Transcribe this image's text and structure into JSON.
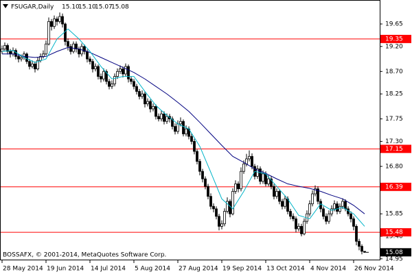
{
  "chart_data": {
    "type": "candlestick",
    "title": "FSUGAR,Daily",
    "ohlc_labels": [
      "15.10",
      "15.10",
      "15.07",
      "15.08"
    ],
    "watermark": "BOSSAFX, © 2001-2014, MetaQuotes Software Corp.",
    "categories": [
      "28 May 2014",
      null,
      null,
      null,
      null,
      null,
      null,
      null,
      null,
      null,
      null,
      null,
      null,
      null,
      null,
      null,
      "19 Jun 2014",
      null,
      null,
      null,
      null,
      null,
      null,
      null,
      null,
      null,
      null,
      null,
      null,
      null,
      null,
      null,
      "14 Jul 2014",
      null,
      null,
      null,
      null,
      null,
      null,
      null,
      null,
      null,
      null,
      null,
      null,
      null,
      null,
      null,
      "5 Aug 2014",
      null,
      null,
      null,
      null,
      null,
      null,
      null,
      null,
      null,
      null,
      null,
      null,
      null,
      null,
      null,
      "27 Aug 2014",
      null,
      null,
      null,
      null,
      null,
      null,
      null,
      null,
      null,
      null,
      null,
      null,
      null,
      null,
      null,
      "19 Sep 2014",
      null,
      null,
      null,
      null,
      null,
      null,
      null,
      null,
      null,
      null,
      null,
      null,
      null,
      null,
      null,
      "13 Oct 2014",
      null,
      null,
      null,
      null,
      null,
      null,
      null,
      null,
      null,
      null,
      null,
      null,
      null,
      null,
      null,
      "4 Nov 2014",
      null,
      null,
      null,
      null,
      null,
      null,
      null,
      null,
      null,
      null,
      null,
      null,
      null,
      null,
      null,
      "26 Nov 2014",
      null,
      null,
      null,
      null
    ],
    "open": [
      19.1,
      19.15,
      19.22,
      19.1,
      19.05,
      19.12,
      19.0,
      18.95,
      18.98,
      19.05,
      18.9,
      18.8,
      18.85,
      18.75,
      18.92,
      19.0,
      19.05,
      19.25,
      19.7,
      19.6,
      19.75,
      19.7,
      19.8,
      19.65,
      19.3,
      19.2,
      19.1,
      19.25,
      19.15,
      19.05,
      19.2,
      19.1,
      18.95,
      18.9,
      18.75,
      18.8,
      18.6,
      18.55,
      18.7,
      18.5,
      18.4,
      18.45,
      18.6,
      18.7,
      18.75,
      18.65,
      18.8,
      18.55,
      18.5,
      18.4,
      18.3,
      18.2,
      18.25,
      18.05,
      18.1,
      17.95,
      18.0,
      17.8,
      17.75,
      17.85,
      17.7,
      17.8,
      17.75,
      17.6,
      17.5,
      17.65,
      17.7,
      17.45,
      17.55,
      17.4,
      17.3,
      17.1,
      16.9,
      16.7,
      16.55,
      16.4,
      16.2,
      16.0,
      15.95,
      15.8,
      15.6,
      15.65,
      15.9,
      16.1,
      15.85,
      16.3,
      16.45,
      16.35,
      16.7,
      16.85,
      16.95,
      17.0,
      16.8,
      16.6,
      16.75,
      16.5,
      16.65,
      16.45,
      16.55,
      16.4,
      16.2,
      16.3,
      16.1,
      16.0,
      16.15,
      15.9,
      15.8,
      15.75,
      15.55,
      15.6,
      15.45,
      15.7,
      15.85,
      16.05,
      16.25,
      16.35,
      16.1,
      15.95,
      15.8,
      15.7,
      15.85,
      15.95,
      16.05,
      15.9,
      16.0,
      16.1,
      15.95,
      15.85,
      15.75,
      15.6,
      15.3,
      15.2,
      15.1
    ],
    "high": [
      19.22,
      19.28,
      19.26,
      19.15,
      19.18,
      19.16,
      19.05,
      19.04,
      19.1,
      19.08,
      18.95,
      18.92,
      18.9,
      18.98,
      19.06,
      19.12,
      19.32,
      19.78,
      19.75,
      19.82,
      19.8,
      19.88,
      19.86,
      19.68,
      19.36,
      19.25,
      19.3,
      19.3,
      19.2,
      19.26,
      19.24,
      19.14,
      19.0,
      18.95,
      18.86,
      18.84,
      18.66,
      18.76,
      18.74,
      18.55,
      18.52,
      18.66,
      18.76,
      18.82,
      18.8,
      18.86,
      18.84,
      18.6,
      18.55,
      18.45,
      18.35,
      18.32,
      18.3,
      18.16,
      18.14,
      18.06,
      18.04,
      17.86,
      17.92,
      17.9,
      17.86,
      17.85,
      17.8,
      17.66,
      17.72,
      17.78,
      17.74,
      17.62,
      17.6,
      17.46,
      17.35,
      17.14,
      16.95,
      16.75,
      16.6,
      16.45,
      16.26,
      16.06,
      16.0,
      15.85,
      15.72,
      15.96,
      16.18,
      16.14,
      16.36,
      16.52,
      16.5,
      16.78,
      16.92,
      17.05,
      17.12,
      17.06,
      16.85,
      16.82,
      16.8,
      16.72,
      16.7,
      16.62,
      16.6,
      16.45,
      16.36,
      16.34,
      16.15,
      16.22,
      16.2,
      15.95,
      15.86,
      15.8,
      15.66,
      15.65,
      15.76,
      15.92,
      16.12,
      16.32,
      16.42,
      16.4,
      16.15,
      16.0,
      15.86,
      15.92,
      16.02,
      16.12,
      16.1,
      16.06,
      16.16,
      16.14,
      16.0,
      15.9,
      15.8,
      15.64,
      15.35,
      15.24,
      15.1
    ],
    "low": [
      19.05,
      19.1,
      19.04,
      18.98,
      19.0,
      18.94,
      18.88,
      18.9,
      18.93,
      18.85,
      18.74,
      18.76,
      18.68,
      18.72,
      18.88,
      18.96,
      19.02,
      19.22,
      19.52,
      19.55,
      19.62,
      19.66,
      19.58,
      19.22,
      19.12,
      19.04,
      19.06,
      19.08,
      18.98,
      19.0,
      19.04,
      18.88,
      18.84,
      18.68,
      18.7,
      18.54,
      18.48,
      18.5,
      18.44,
      18.34,
      18.35,
      18.4,
      18.55,
      18.65,
      18.58,
      18.6,
      18.48,
      18.44,
      18.34,
      18.24,
      18.14,
      18.15,
      17.98,
      18.0,
      17.88,
      17.9,
      17.74,
      17.7,
      17.7,
      17.64,
      17.65,
      17.68,
      17.54,
      17.44,
      17.45,
      17.6,
      17.4,
      17.4,
      17.34,
      17.24,
      17.04,
      16.84,
      16.62,
      16.48,
      16.34,
      16.14,
      15.94,
      15.88,
      15.74,
      15.52,
      15.54,
      15.6,
      15.86,
      15.78,
      15.82,
      16.25,
      16.28,
      16.3,
      16.65,
      16.8,
      16.9,
      16.74,
      16.54,
      16.55,
      16.44,
      16.45,
      16.4,
      16.4,
      16.34,
      16.14,
      16.15,
      16.04,
      15.94,
      15.95,
      15.84,
      15.74,
      15.7,
      15.48,
      15.5,
      15.4,
      15.42,
      15.65,
      15.8,
      16.0,
      16.2,
      16.04,
      15.88,
      15.74,
      15.64,
      15.65,
      15.8,
      15.9,
      15.84,
      15.85,
      15.95,
      15.9,
      15.8,
      15.68,
      15.52,
      15.22,
      15.12,
      15.04,
      15.07
    ],
    "close": [
      19.15,
      19.22,
      19.1,
      19.05,
      19.12,
      19.0,
      18.95,
      18.98,
      19.05,
      18.9,
      18.8,
      18.85,
      18.75,
      18.92,
      19.0,
      19.05,
      19.25,
      19.7,
      19.6,
      19.75,
      19.7,
      19.8,
      19.65,
      19.3,
      19.2,
      19.1,
      19.25,
      19.15,
      19.05,
      19.2,
      19.1,
      18.95,
      18.9,
      18.75,
      18.8,
      18.6,
      18.55,
      18.7,
      18.5,
      18.4,
      18.45,
      18.6,
      18.7,
      18.75,
      18.65,
      18.8,
      18.55,
      18.5,
      18.4,
      18.3,
      18.2,
      18.25,
      18.05,
      18.1,
      17.95,
      18.0,
      17.8,
      17.75,
      17.85,
      17.7,
      17.8,
      17.75,
      17.6,
      17.5,
      17.65,
      17.7,
      17.45,
      17.55,
      17.4,
      17.3,
      17.1,
      16.9,
      16.7,
      16.55,
      16.4,
      16.2,
      16.0,
      15.95,
      15.8,
      15.6,
      15.65,
      15.9,
      16.1,
      15.85,
      16.3,
      16.45,
      16.35,
      16.7,
      16.85,
      16.95,
      17.0,
      16.8,
      16.6,
      16.75,
      16.5,
      16.65,
      16.45,
      16.55,
      16.4,
      16.2,
      16.3,
      16.1,
      16.0,
      16.15,
      15.9,
      15.8,
      15.75,
      15.55,
      15.6,
      15.45,
      15.7,
      15.85,
      16.05,
      16.25,
      16.35,
      16.1,
      15.95,
      15.8,
      15.7,
      15.85,
      15.95,
      16.05,
      15.9,
      16.0,
      16.1,
      15.95,
      15.85,
      15.75,
      15.6,
      15.3,
      15.2,
      15.1,
      15.08
    ],
    "up_color": "#ffffff",
    "down_color": "#000000",
    "moving_averages": [
      {
        "color": "#000080",
        "x": [
          0,
          4,
          8,
          12,
          16,
          20,
          24,
          28,
          32,
          36,
          40,
          44,
          48,
          52,
          56,
          60,
          64,
          68,
          72,
          76,
          80,
          84,
          88,
          92,
          96,
          100,
          104,
          108,
          112,
          116,
          120,
          124,
          128,
          132
        ],
        "values": [
          19.05,
          19.05,
          19.0,
          18.98,
          19.0,
          19.1,
          19.18,
          19.15,
          19.08,
          18.98,
          18.88,
          18.78,
          18.68,
          18.55,
          18.4,
          18.25,
          18.08,
          17.9,
          17.68,
          17.45,
          17.22,
          17.0,
          16.88,
          16.75,
          16.66,
          16.55,
          16.45,
          16.4,
          16.36,
          16.3,
          16.22,
          16.15,
          16.02,
          15.85
        ]
      },
      {
        "color": "#00b4c8",
        "x": [
          0,
          4,
          8,
          12,
          16,
          20,
          24,
          28,
          32,
          36,
          40,
          44,
          48,
          52,
          56,
          60,
          64,
          68,
          72,
          76,
          80,
          84,
          88,
          92,
          96,
          100,
          104,
          108,
          112,
          116,
          120,
          124,
          128,
          132
        ],
        "values": [
          19.1,
          19.12,
          18.98,
          18.88,
          18.95,
          19.35,
          19.55,
          19.35,
          19.1,
          18.8,
          18.55,
          18.6,
          18.6,
          18.3,
          18.02,
          17.82,
          17.65,
          17.55,
          17.2,
          16.68,
          16.15,
          15.95,
          16.3,
          16.7,
          16.65,
          16.4,
          16.15,
          15.82,
          15.75,
          16.05,
          15.92,
          15.98,
          15.85,
          15.6
        ]
      }
    ],
    "levels": [
      {
        "value": 19.35,
        "color": "#ff0000"
      },
      {
        "value": 17.15,
        "color": "#ff0000"
      },
      {
        "value": 16.39,
        "color": "#ff0000"
      },
      {
        "value": 15.48,
        "color": "#ff0000"
      }
    ],
    "ylim": [
      14.92,
      20.13
    ],
    "yticks": [
      19.65,
      {
        "value": 19.2,
        "label": "19.20"
      },
      {
        "value": 18.7,
        "label": "18.70"
      },
      18.25,
      17.75,
      {
        "value": 17.3,
        "label": "17.30"
      },
      {
        "value": 16.8,
        "label": "16.80"
      },
      16.35,
      15.85,
      {
        "value": 15.4,
        "label": "15.40"
      },
      14.95
    ],
    "grid": false
  }
}
